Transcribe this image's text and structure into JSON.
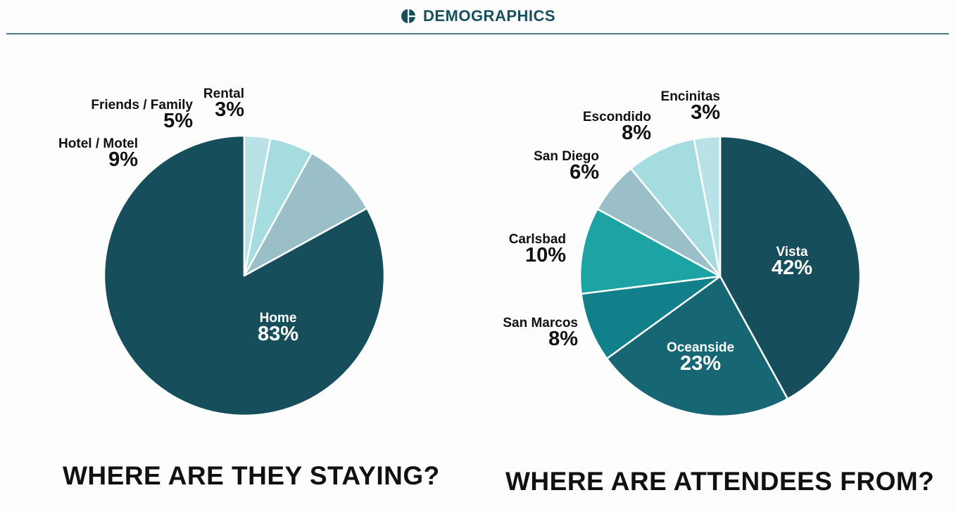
{
  "header": {
    "title": "DEMOGRAPHICS",
    "icon": "pie-chart-icon",
    "color": "#17505c"
  },
  "chart_data": [
    {
      "type": "pie",
      "title": "WHERE ARE THEY STAYING?",
      "slices": [
        {
          "label": "Home",
          "value": 83,
          "display": "83%",
          "color": "#164f5b"
        },
        {
          "label": "Hotel / Motel",
          "value": 9,
          "display": "9%",
          "color": "#9bbfc8"
        },
        {
          "label": "Friends / Family",
          "value": 5,
          "display": "5%",
          "color": "#a5dce0"
        },
        {
          "label": "Rental",
          "value": 3,
          "display": "3%",
          "color": "#b8e2e6"
        }
      ]
    },
    {
      "type": "pie",
      "title": "WHERE ARE ATTENDEES FROM?",
      "slices": [
        {
          "label": "Vista",
          "value": 42,
          "display": "42%",
          "color": "#164f5b"
        },
        {
          "label": "Oceanside",
          "value": 23,
          "display": "23%",
          "color": "#176674"
        },
        {
          "label": "San Marcos",
          "value": 8,
          "display": "8%",
          "color": "#12808a"
        },
        {
          "label": "Carlsbad",
          "value": 10,
          "display": "10%",
          "color": "#1ea3a4"
        },
        {
          "label": "San Diego",
          "value": 6,
          "display": "6%",
          "color": "#9bbfc8"
        },
        {
          "label": "Escondido",
          "value": 8,
          "display": "8%",
          "color": "#a5dce0"
        },
        {
          "label": "Encinitas",
          "value": 3,
          "display": "3%",
          "color": "#b8e2e6"
        }
      ]
    }
  ]
}
